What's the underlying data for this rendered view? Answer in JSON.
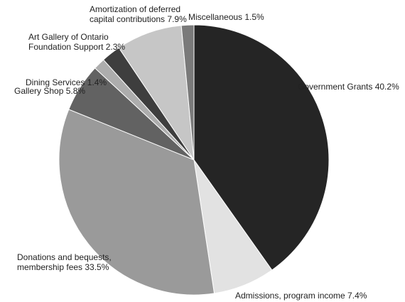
{
  "chart_data": {
    "type": "pie",
    "title": "",
    "start_angle_deg": 0,
    "direction": "clockwise",
    "slices": [
      {
        "label": "Government Grants 40.2%",
        "lines": [
          "Government Grants 40.2%"
        ],
        "value": 40.2,
        "color": "#252525"
      },
      {
        "label": "Admissions, program income 7.4%",
        "lines": [
          "Admissions, program income 7.4%"
        ],
        "value": 7.4,
        "color": "#e2e2e2"
      },
      {
        "label": "Donations and bequests, membership fees 33.5%",
        "lines": [
          "Donations and bequests,",
          "membership fees 33.5%"
        ],
        "value": 33.5,
        "color": "#9a9a9a"
      },
      {
        "label": "Gallery Shop 5.8%",
        "lines": [
          "Gallery Shop 5.8%"
        ],
        "value": 5.8,
        "color": "#626262"
      },
      {
        "label": "Dining Services 1.4%",
        "lines": [
          "Dining Services 1.4%"
        ],
        "value": 1.4,
        "color": "#adadad"
      },
      {
        "label": "Art Gallery of Ontario Foundation Support 2.3%",
        "lines": [
          "Art Gallery of Ontario",
          "Foundation Support 2.3%"
        ],
        "value": 2.3,
        "color": "#3e3e3e"
      },
      {
        "label": "Amortization of deferred capital contributions 7.9%",
        "lines": [
          "Amortization of deferred",
          "capital contributions 7.9%"
        ],
        "value": 7.9,
        "color": "#c6c6c6"
      },
      {
        "label": "Miscellaneous 1.5%",
        "lines": [
          "Miscellaneous 1.5%"
        ],
        "value": 1.5,
        "color": "#7a7a7a"
      }
    ]
  }
}
